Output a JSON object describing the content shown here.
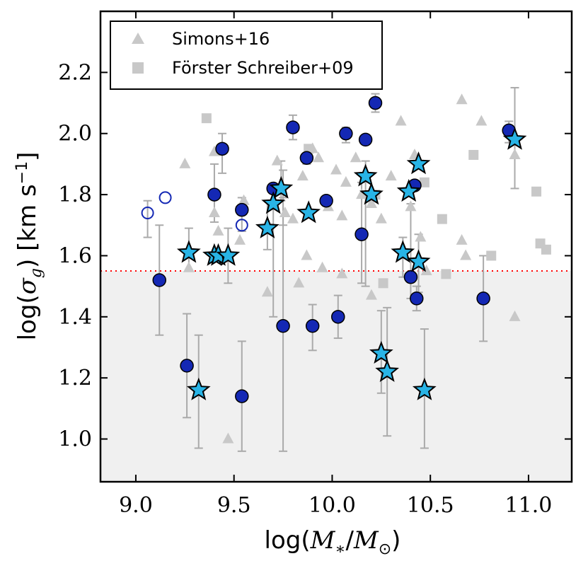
{
  "chart_data": {
    "type": "scatter",
    "title": "",
    "xlabel": "log(M*/M⊙)",
    "ylabel": "log(σg) [km s⁻¹]",
    "xlim": [
      8.82,
      11.22
    ],
    "ylim": [
      0.86,
      2.4
    ],
    "x_ticks": [
      9.0,
      9.5,
      10.0,
      10.5,
      11.0
    ],
    "x_tick_labels": [
      "9.0",
      "9.5",
      "10.0",
      "10.5",
      "11.0"
    ],
    "y_ticks": [
      1.0,
      1.2,
      1.4,
      1.6,
      1.8,
      2.0,
      2.2
    ],
    "y_tick_labels": [
      "1.0",
      "1.2",
      "1.4",
      "1.6",
      "1.8",
      "2.0",
      "2.2"
    ],
    "threshold_y": 1.55,
    "legend_position": "top-left",
    "colors": {
      "background_points": "#c8c8c8",
      "circle_fill": "#1428b4",
      "star_fill": "#28b4e6",
      "threshold_line": "#ff0000",
      "shaded_region": "#f0f0f0",
      "error_bar": "#aaaaaa"
    },
    "series": [
      {
        "name": "Simons+16",
        "marker": "triangle",
        "points": [
          [
            9.25,
            1.9
          ],
          [
            9.4,
            1.94
          ],
          [
            9.4,
            1.74
          ],
          [
            9.27,
            1.56
          ],
          [
            9.55,
            1.78
          ],
          [
            9.42,
            1.68
          ],
          [
            9.53,
            1.65
          ],
          [
            9.67,
            1.48
          ],
          [
            9.72,
            1.91
          ],
          [
            9.76,
            1.74
          ],
          [
            9.8,
            1.72
          ],
          [
            9.85,
            1.86
          ],
          [
            9.87,
            1.6
          ],
          [
            9.9,
            1.95
          ],
          [
            9.93,
            1.92
          ],
          [
            9.95,
            1.56
          ],
          [
            9.98,
            1.76
          ],
          [
            10.02,
            1.88
          ],
          [
            10.05,
            1.73
          ],
          [
            10.07,
            1.84
          ],
          [
            10.12,
            1.92
          ],
          [
            10.15,
            1.8
          ],
          [
            10.2,
            1.77
          ],
          [
            10.2,
            1.47
          ],
          [
            10.25,
            1.72
          ],
          [
            10.3,
            1.86
          ],
          [
            10.35,
            2.04
          ],
          [
            10.4,
            1.76
          ],
          [
            10.45,
            1.66
          ],
          [
            10.48,
            1.55
          ],
          [
            10.66,
            2.11
          ],
          [
            10.66,
            1.65
          ],
          [
            10.68,
            1.6
          ],
          [
            10.76,
            2.04
          ],
          [
            10.93,
            1.93
          ],
          [
            10.93,
            1.4
          ],
          [
            9.47,
            1.0
          ],
          [
            10.05,
            1.54
          ],
          [
            10.42,
            1.93
          ],
          [
            9.83,
            1.51
          ]
        ]
      },
      {
        "name": "Förster Schreiber+09",
        "marker": "square",
        "points": [
          [
            9.36,
            2.05
          ],
          [
            9.88,
            1.95
          ],
          [
            10.22,
            1.8
          ],
          [
            10.26,
            1.51
          ],
          [
            10.56,
            1.72
          ],
          [
            10.58,
            1.54
          ],
          [
            10.72,
            1.93
          ],
          [
            10.81,
            1.6
          ],
          [
            11.04,
            1.81
          ],
          [
            11.06,
            1.64
          ],
          [
            11.09,
            1.62
          ],
          [
            10.47,
            1.84
          ]
        ]
      },
      {
        "name": "Filled circles",
        "marker": "circle",
        "points": [
          [
            9.12,
            1.52
          ],
          [
            9.26,
            1.24
          ],
          [
            9.4,
            1.8
          ],
          [
            9.44,
            1.95
          ],
          [
            9.54,
            1.75
          ],
          [
            9.54,
            1.14
          ],
          [
            9.7,
            1.82
          ],
          [
            9.75,
            1.37
          ],
          [
            9.8,
            2.02
          ],
          [
            9.87,
            1.92
          ],
          [
            9.9,
            1.37
          ],
          [
            9.97,
            1.78
          ],
          [
            10.03,
            1.4
          ],
          [
            10.07,
            2.0
          ],
          [
            10.15,
            1.67
          ],
          [
            10.17,
            1.98
          ],
          [
            10.22,
            2.1
          ],
          [
            10.4,
            1.53
          ],
          [
            10.42,
            1.83
          ],
          [
            10.43,
            1.46
          ],
          [
            10.77,
            1.46
          ],
          [
            10.9,
            2.01
          ]
        ]
      },
      {
        "name": "Open circles",
        "marker": "open-circle",
        "points": [
          [
            9.06,
            1.74
          ],
          [
            9.15,
            1.79
          ],
          [
            9.54,
            1.7
          ]
        ]
      },
      {
        "name": "Stars",
        "marker": "star",
        "points": [
          [
            9.27,
            1.61
          ],
          [
            9.32,
            1.16
          ],
          [
            9.4,
            1.6
          ],
          [
            9.42,
            1.6
          ],
          [
            9.47,
            1.6
          ],
          [
            9.67,
            1.69
          ],
          [
            9.7,
            1.77
          ],
          [
            9.74,
            1.82
          ],
          [
            9.88,
            1.74
          ],
          [
            10.17,
            1.86
          ],
          [
            10.2,
            1.8
          ],
          [
            10.25,
            1.28
          ],
          [
            10.28,
            1.22
          ],
          [
            10.36,
            1.61
          ],
          [
            10.39,
            1.81
          ],
          [
            10.44,
            1.58
          ],
          [
            10.44,
            1.9
          ],
          [
            10.47,
            1.16
          ],
          [
            10.93,
            1.98
          ]
        ]
      }
    ],
    "error_bars": [
      [
        9.12,
        1.34,
        1.7
      ],
      [
        9.26,
        1.07,
        1.41
      ],
      [
        9.4,
        1.71,
        1.9
      ],
      [
        9.44,
        1.87,
        2.0
      ],
      [
        9.54,
        1.68,
        1.79
      ],
      [
        9.54,
        0.96,
        1.32
      ],
      [
        9.75,
        1.7,
        1.88
      ],
      [
        9.75,
        0.96,
        1.79
      ],
      [
        9.8,
        1.98,
        2.06
      ],
      [
        9.9,
        1.29,
        1.44
      ],
      [
        10.03,
        1.33,
        1.47
      ],
      [
        10.15,
        1.51,
        1.84
      ],
      [
        10.22,
        2.07,
        2.13
      ],
      [
        10.43,
        1.42,
        1.5
      ],
      [
        10.77,
        1.32,
        1.6
      ],
      [
        10.9,
        1.97,
        2.04
      ],
      [
        9.06,
        1.66,
        1.78
      ],
      [
        9.27,
        1.55,
        1.69
      ],
      [
        9.32,
        0.97,
        1.34
      ],
      [
        9.47,
        1.51,
        1.69
      ],
      [
        9.67,
        1.62,
        1.78
      ],
      [
        9.7,
        1.4,
        1.81
      ],
      [
        9.74,
        1.78,
        1.91
      ],
      [
        9.87,
        1.9,
        1.93
      ],
      [
        10.17,
        1.5,
        1.91
      ],
      [
        10.25,
        1.15,
        1.42
      ],
      [
        10.28,
        1.01,
        1.43
      ],
      [
        10.36,
        1.53,
        1.66
      ],
      [
        10.4,
        1.46,
        1.77
      ],
      [
        10.44,
        1.48,
        1.67
      ],
      [
        10.47,
        0.97,
        1.36
      ],
      [
        10.93,
        1.82,
        2.15
      ],
      [
        10.07,
        1.97,
        2.02
      ]
    ]
  }
}
